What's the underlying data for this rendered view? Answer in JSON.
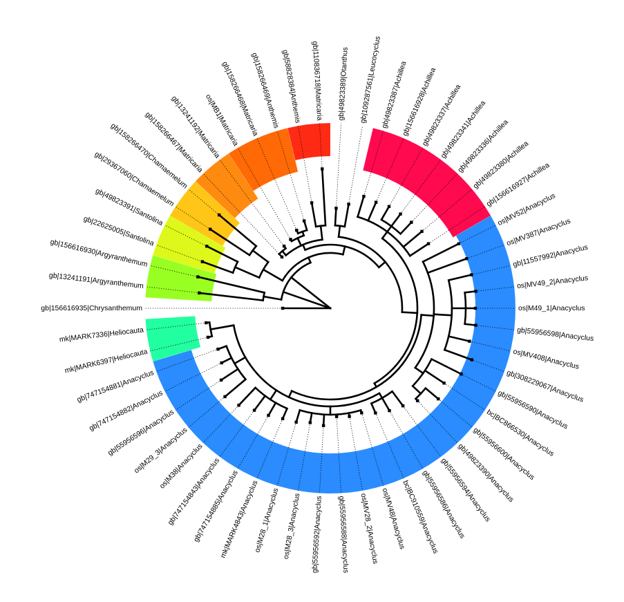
{
  "tree": {
    "tips": [
      "gb|156616935|Chrysanthemum",
      "gb|13241191|Argyranthemum",
      "gb|156616930|Argyranthemum",
      "gb|22625005|Santolina",
      "gb|49823391|Santolina",
      "gb|29367060|Chamaemelum",
      "gb|158266470|Chamaemelum",
      "gb|158266467|Matricaria",
      "gb|13241192|Matricaria",
      "os|MB1|Matricaria",
      "gb|158266468|Matricaria",
      "gb|158266469|Anthemis",
      "gb|58828384|Anthemis",
      "gb|110836718|Matricaria",
      "gb|49823389|Otanthus",
      "gb|109287561|Leucocyclus",
      "gb|49823387|Achillea",
      "gb|156616928|Achillea",
      "gb|49823337|Achillea",
      "gb|49823341|Achillea",
      "gb|49823336|Achillea",
      "gb|49823380|Achillea",
      "gb|156616927|Achillea",
      "os|MV52|Anacyclus",
      "os|MV387|Anacyclus",
      "gb|11557992|Anacyclus",
      "os|MV49_2|Anacyclus",
      "os|M49_1|Anacyclus",
      "gb|55956598|Anacyclus",
      "os|MV408|Anacyclus",
      "gb|308229067|Anacyclus",
      "gb|55956590|Anacyclus",
      "bc|BC866530|Anacyclus",
      "gb|55956600|Anacyclus",
      "gb|49823390|Anacyclus",
      "gb|55956594|Anacyclus",
      "gb|55956586|Anacyclus",
      "bc|BC910559|Anacyclus",
      "os|MV48|Anacyclus",
      "os|MV28_2|Anacyclus",
      "gb|55956588|Anacyclus",
      "gb|55956592|Anacyclus",
      "os|M28_3|Anacyclus",
      "os|M28_1|Anacyclus",
      "mk|MARK4843|Anacyclus",
      "gb|747154885|Anacyclus",
      "gb|747154843|Anacyclus",
      "os|M38|Anacyclus",
      "os|M29_3|Anacyclus",
      "gb|55956596|Anacyclus",
      "gb|747154882|Anacyclus",
      "gb|747154881|Anacyclus",
      "mk|MARK6397|Heliocauta",
      "mk|MARK7336|Heliocauta"
    ],
    "clade_colors": [
      {
        "genus": "Argyranthemum",
        "color": "#99ff22"
      },
      {
        "genus": "Santolina",
        "color": "#ddf81a"
      },
      {
        "genus": "Chamaemelum",
        "color": "#ffc617"
      },
      {
        "genus": "Matricaria_lower",
        "color": "#ff8a10"
      },
      {
        "genus": "Matricaria_mid",
        "color": "#ff6a06"
      },
      {
        "genus": "Anthemis_Matricaria",
        "color": "#ff2a14"
      },
      {
        "genus": "Achillea",
        "color": "#ff0a4e"
      },
      {
        "genus": "Anacyclus",
        "color": "#2a8cff"
      },
      {
        "genus": "Heliocauta",
        "color": "#22ffa0"
      }
    ]
  }
}
